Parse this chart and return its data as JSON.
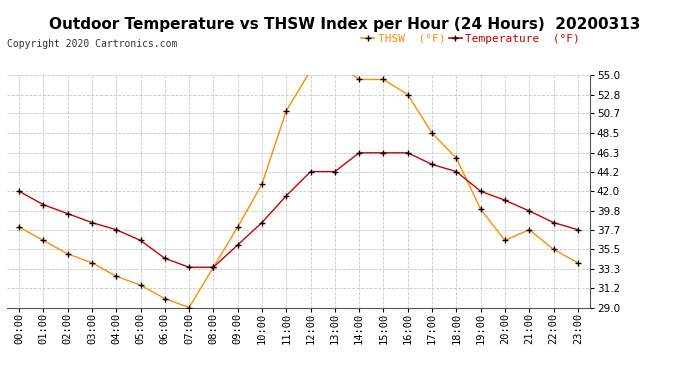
{
  "title": "Outdoor Temperature vs THSW Index per Hour (24 Hours)  20200313",
  "copyright": "Copyright 2020 Cartronics.com",
  "hours": [
    "00:00",
    "01:00",
    "02:00",
    "03:00",
    "04:00",
    "05:00",
    "06:00",
    "07:00",
    "08:00",
    "09:00",
    "10:00",
    "11:00",
    "12:00",
    "13:00",
    "14:00",
    "15:00",
    "16:00",
    "17:00",
    "18:00",
    "19:00",
    "20:00",
    "21:00",
    "22:00",
    "23:00"
  ],
  "temperature": [
    42.0,
    40.5,
    39.5,
    38.5,
    37.7,
    36.5,
    34.5,
    33.5,
    33.5,
    36.0,
    38.5,
    41.5,
    44.2,
    44.2,
    46.3,
    46.3,
    46.3,
    45.0,
    44.2,
    42.0,
    41.0,
    39.8,
    38.5,
    37.7
  ],
  "thsw": [
    38.0,
    36.5,
    35.0,
    34.0,
    32.5,
    31.5,
    30.0,
    29.0,
    33.5,
    38.0,
    42.8,
    51.0,
    55.5,
    56.5,
    54.5,
    54.5,
    52.8,
    48.5,
    45.7,
    40.0,
    36.5,
    37.7,
    35.5,
    34.0
  ],
  "temp_color": "#cc0000",
  "thsw_color": "#ff8c00",
  "marker": "+",
  "marker_color": "#000000",
  "ylim_min": 29.0,
  "ylim_max": 55.0,
  "yticks": [
    29.0,
    31.2,
    33.3,
    35.5,
    37.7,
    39.8,
    42.0,
    44.2,
    46.3,
    48.5,
    50.7,
    52.8,
    55.0
  ],
  "legend_thsw": "THSW  (°F)",
  "legend_temp": "Temperature  (°F)",
  "background_color": "#ffffff",
  "grid_color": "#c8c8c8",
  "title_fontsize": 11,
  "copyright_fontsize": 7,
  "legend_fontsize": 8,
  "tick_fontsize": 7.5
}
